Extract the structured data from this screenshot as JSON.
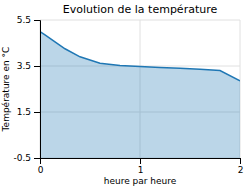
{
  "chart_data": {
    "type": "area",
    "title": "Evolution de la température",
    "xlabel": "heure par heure",
    "ylabel": "Température en °C",
    "x": [
      0.0,
      0.05,
      0.15,
      0.25,
      0.4,
      0.6,
      0.8,
      0.9,
      1.0,
      1.1,
      1.2,
      1.4,
      1.6,
      1.8,
      2.0
    ],
    "values": [
      5.0,
      4.85,
      4.55,
      4.25,
      3.9,
      3.62,
      3.52,
      3.5,
      3.48,
      3.46,
      3.44,
      3.4,
      3.36,
      3.3,
      2.85
    ],
    "xlim": [
      0,
      2
    ],
    "ylim": [
      -0.5,
      5.5
    ],
    "xticks": [
      0,
      1,
      2
    ],
    "yticks": [
      -0.5,
      1.5,
      3.5,
      5.5
    ],
    "grid": true
  }
}
